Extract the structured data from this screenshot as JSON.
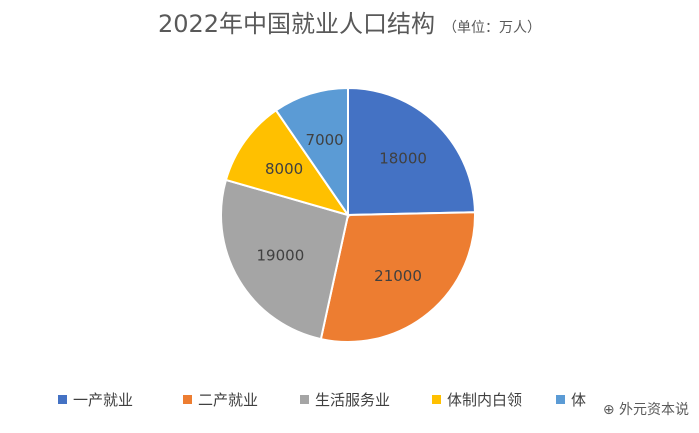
{
  "chart_data": {
    "type": "pie",
    "title": "2022年中国就业人口结构",
    "subtitle": "（单位：万人）",
    "categories": [
      "一产就业",
      "二产就业",
      "生活服务业",
      "体制内白领",
      "体"
    ],
    "values": [
      18000,
      21000,
      19000,
      8000,
      7000
    ],
    "colors": [
      "#4472C4",
      "#ED7D31",
      "#A5A5A5",
      "#FFC000",
      "#5B9BD5"
    ],
    "legend_position": "bottom",
    "data_labels": [
      "18000",
      "21000",
      "19000",
      "8000",
      "7000"
    ]
  },
  "watermark": "外元资本说"
}
